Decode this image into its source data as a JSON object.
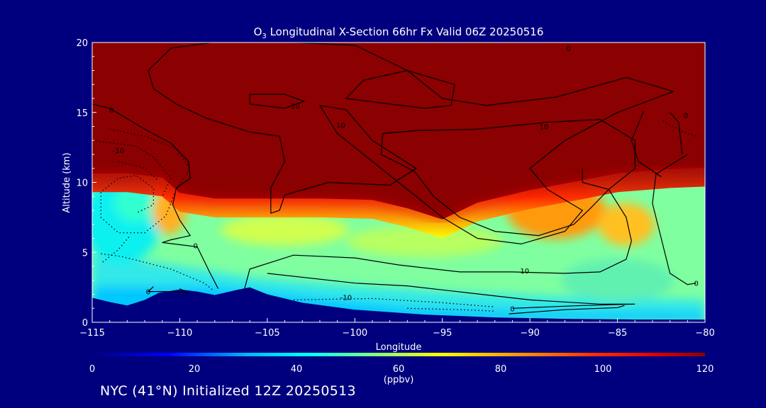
{
  "title": {
    "species": "O",
    "subscript": "3",
    "rest": " Longitudinal X-Section 66hr  Fx Valid 06Z 20250516"
  },
  "footer": "NYC (41°N) Initialized 12Z 20250513",
  "colorbar": {
    "unit": "(ppbv)",
    "ticks": [
      "0",
      "20",
      "40",
      "60",
      "80",
      "100",
      "120"
    ],
    "min": 0,
    "max": 120,
    "stops": [
      {
        "v": 0,
        "color": "#00007f"
      },
      {
        "v": 15,
        "color": "#0000ff"
      },
      {
        "v": 30,
        "color": "#00b4ff"
      },
      {
        "v": 42,
        "color": "#00ffff"
      },
      {
        "v": 55,
        "color": "#80ff80"
      },
      {
        "v": 68,
        "color": "#ffff00"
      },
      {
        "v": 82,
        "color": "#ffa000"
      },
      {
        "v": 98,
        "color": "#ff3000"
      },
      {
        "v": 110,
        "color": "#e00000"
      },
      {
        "v": 120,
        "color": "#8b0000"
      }
    ]
  },
  "chart_data": {
    "type": "heatmap",
    "xlabel": "Longitude",
    "ylabel": "Altitude (km)",
    "xlim": [
      -115,
      -80
    ],
    "ylim": [
      0,
      20
    ],
    "x_ticks": [
      {
        "v": -115,
        "label": "−115"
      },
      {
        "v": -110,
        "label": "−110"
      },
      {
        "v": -105,
        "label": "−105"
      },
      {
        "v": -100,
        "label": "−100"
      },
      {
        "v": -95,
        "label": "−95"
      },
      {
        "v": -90,
        "label": "−90"
      },
      {
        "v": -85,
        "label": "−85"
      },
      {
        "v": -80,
        "label": "−80"
      }
    ],
    "y_ticks": [
      {
        "v": 0,
        "label": "0"
      },
      {
        "v": 5,
        "label": "5"
      },
      {
        "v": 10,
        "label": "10"
      },
      {
        "v": 15,
        "label": "15"
      },
      {
        "v": 20,
        "label": "20"
      }
    ],
    "tropopause_km": [
      [
        -115,
        10.9
      ],
      [
        -113,
        10.9
      ],
      [
        -111,
        10.6
      ],
      [
        -110,
        9.5
      ],
      [
        -108,
        9.1
      ],
      [
        -105,
        9.1
      ],
      [
        -102,
        9.1
      ],
      [
        -99,
        9.0
      ],
      [
        -97,
        8.4
      ],
      [
        -95,
        7.6
      ],
      [
        -93,
        8.8
      ],
      [
        -90,
        9.7
      ],
      [
        -87,
        10.4
      ],
      [
        -85,
        10.9
      ],
      [
        -82,
        11.2
      ],
      [
        -80,
        11.3
      ]
    ],
    "terrain_km": [
      [
        -115,
        1.75
      ],
      [
        -114,
        1.45
      ],
      [
        -113,
        1.2
      ],
      [
        -112,
        1.6
      ],
      [
        -111.2,
        2.1
      ],
      [
        -110,
        2.35
      ],
      [
        -109,
        2.2
      ],
      [
        -108,
        1.95
      ],
      [
        -106.8,
        2.3
      ],
      [
        -106,
        2.5
      ],
      [
        -105,
        2.0
      ],
      [
        -103,
        1.4
      ],
      [
        -100,
        0.9
      ],
      [
        -96,
        0.55
      ],
      [
        -92,
        0.35
      ],
      [
        -88,
        0.25
      ],
      [
        -84,
        0.2
      ],
      [
        -80,
        0.2
      ]
    ],
    "contour_labels": [
      {
        "text": "0",
        "lon": -113.9,
        "alt": 15.2
      },
      {
        "text": "-10",
        "lon": -113.5,
        "alt": 12.3
      },
      {
        "text": "10",
        "lon": -103.4,
        "alt": 15.5
      },
      {
        "text": "0",
        "lon": -87.8,
        "alt": 19.6
      },
      {
        "text": "10",
        "lon": -100.8,
        "alt": 14.1
      },
      {
        "text": "10",
        "lon": -89.2,
        "alt": 14.0
      },
      {
        "text": "0",
        "lon": -81.1,
        "alt": 14.8
      },
      {
        "text": "0",
        "lon": -109.1,
        "alt": 5.5
      },
      {
        "text": "0",
        "lon": -111.8,
        "alt": 2.2
      },
      {
        "text": "-10",
        "lon": -100.5,
        "alt": 1.8
      },
      {
        "text": "10",
        "lon": -90.3,
        "alt": 3.7
      },
      {
        "text": "0",
        "lon": -91,
        "alt": 1.0
      },
      {
        "text": "0",
        "lon": -80.5,
        "alt": 2.8
      }
    ]
  }
}
